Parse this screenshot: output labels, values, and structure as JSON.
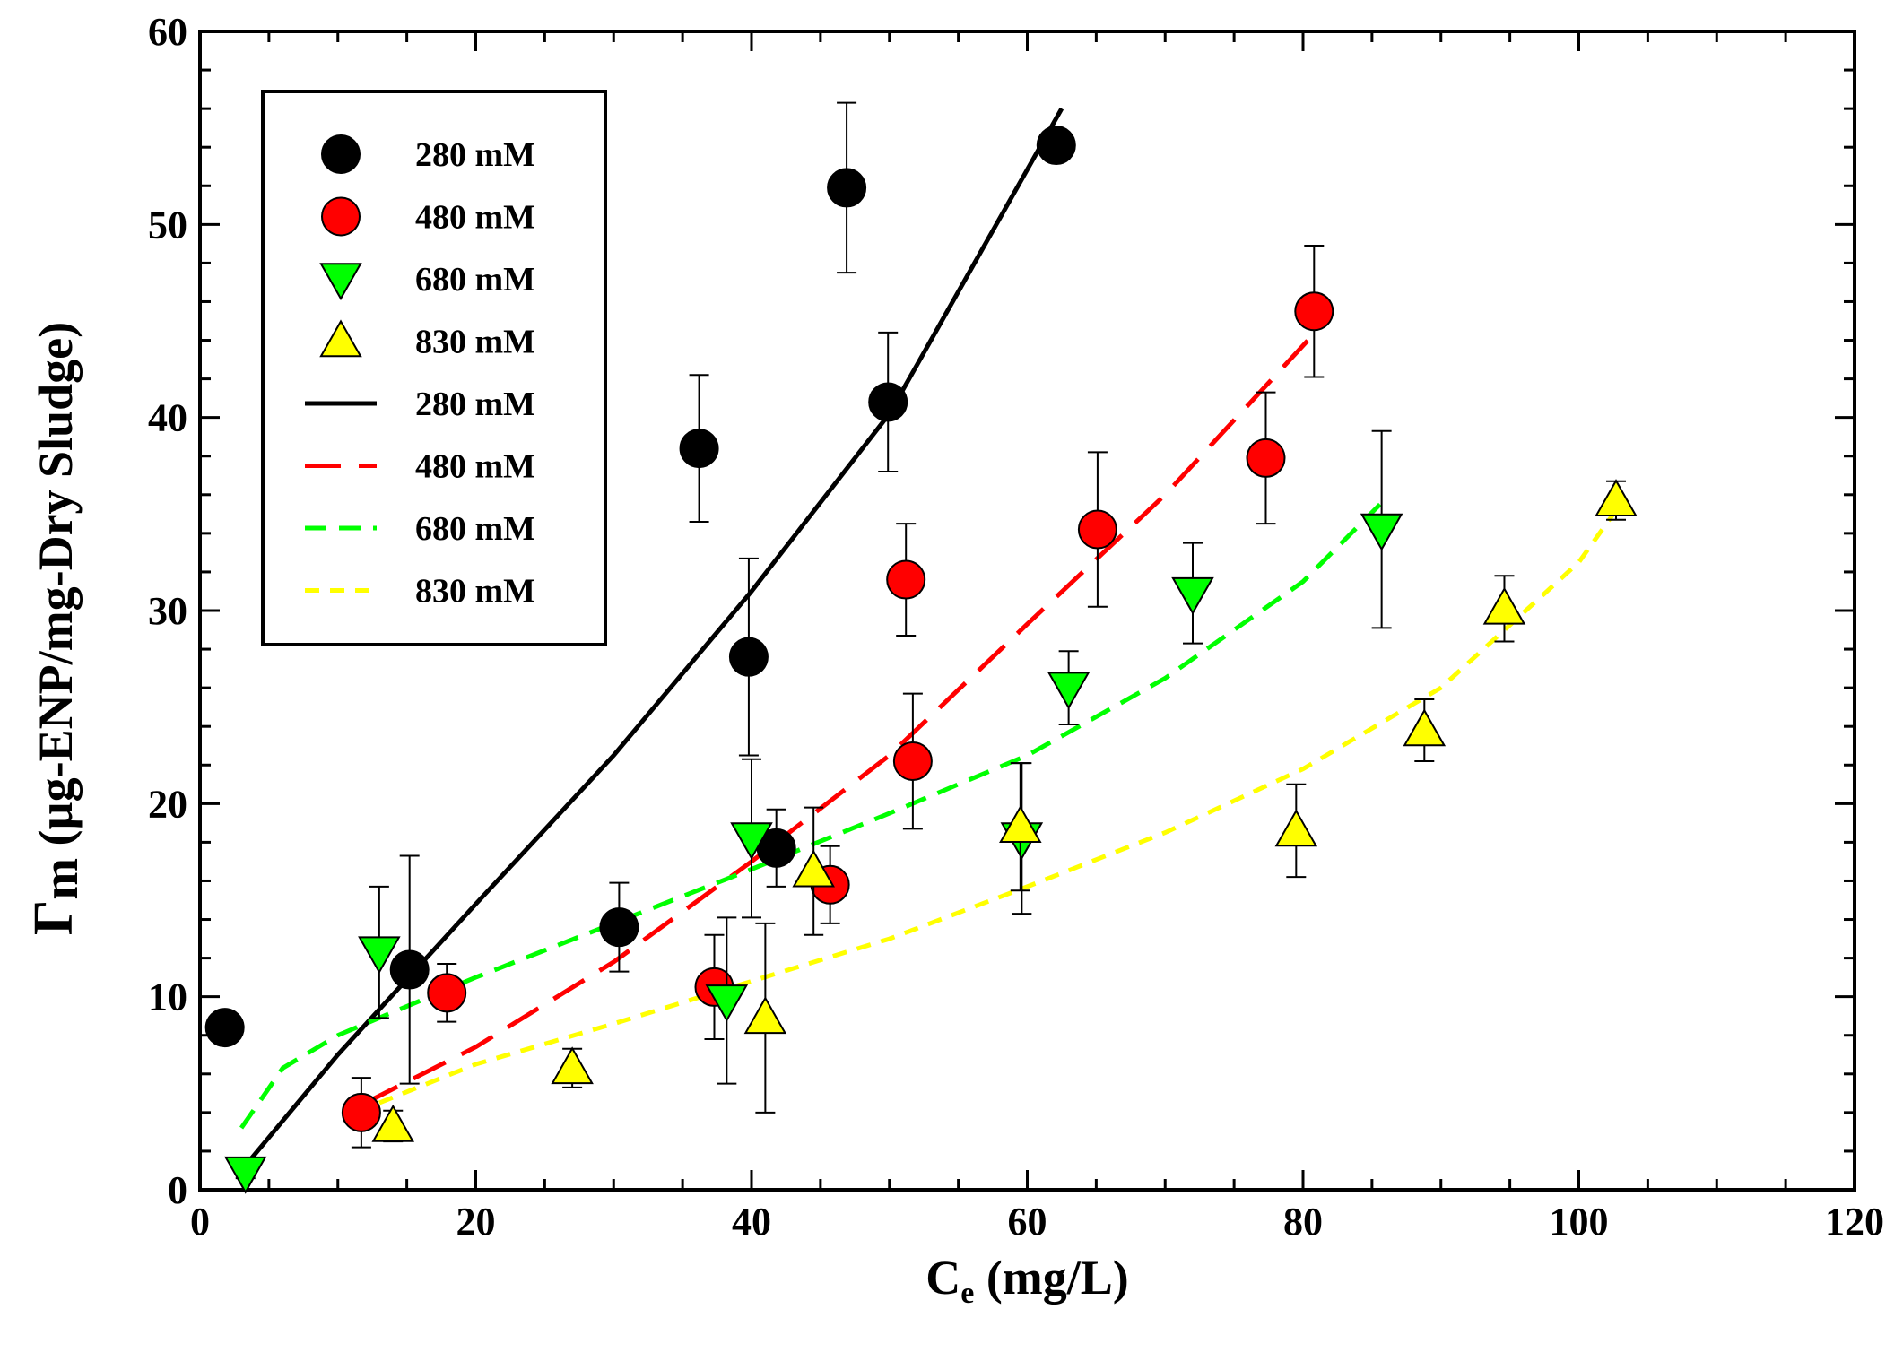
{
  "chart_data": {
    "type": "scatter",
    "xlabel": "C",
    "xlabel_sub": "e",
    "xlabel_unit": " (mg/L)",
    "ylabel_symbol": "Γ",
    "ylabel_sub": "m",
    "ylabel": " (µg-ENP/mg-Dry Sludge)",
    "xlim": [
      0,
      120
    ],
    "ylim": [
      0,
      60
    ],
    "xticks": [
      0,
      20,
      40,
      60,
      80,
      100,
      120
    ],
    "yticks": [
      0,
      10,
      20,
      30,
      40,
      50,
      60
    ],
    "x_minor_step": 5,
    "y_minor_step": 2,
    "grid": false,
    "legend_position": "top-left",
    "series": [
      {
        "name": "280 mM",
        "kind": "points",
        "marker": "circle",
        "color": "#000000",
        "points": [
          {
            "x": 1.8,
            "y": 8.4,
            "err": 0.7
          },
          {
            "x": 15.2,
            "y": 11.4,
            "err": 5.9
          },
          {
            "x": 30.4,
            "y": 13.6,
            "err": 2.3
          },
          {
            "x": 36.2,
            "y": 38.4,
            "err": 3.8
          },
          {
            "x": 39.8,
            "y": 27.6,
            "err": 5.1
          },
          {
            "x": 41.8,
            "y": 17.7,
            "err": 2.0
          },
          {
            "x": 46.9,
            "y": 51.9,
            "err": 4.4
          },
          {
            "x": 49.9,
            "y": 40.8,
            "err": 3.6
          },
          {
            "x": 62.1,
            "y": 54.1,
            "err": 0.2
          }
        ]
      },
      {
        "name": "480 mM",
        "kind": "points",
        "marker": "circle",
        "color": "#ff0000",
        "points": [
          {
            "x": 11.7,
            "y": 4.0,
            "err": 1.8
          },
          {
            "x": 17.9,
            "y": 10.2,
            "err": 1.5
          },
          {
            "x": 37.3,
            "y": 10.5,
            "err": 2.7
          },
          {
            "x": 45.7,
            "y": 15.8,
            "err": 2.0
          },
          {
            "x": 51.2,
            "y": 31.6,
            "err": 2.9
          },
          {
            "x": 51.7,
            "y": 22.2,
            "err": 3.5
          },
          {
            "x": 65.1,
            "y": 34.2,
            "err": 4.0
          },
          {
            "x": 77.3,
            "y": 37.9,
            "err": 3.4
          },
          {
            "x": 80.8,
            "y": 45.5,
            "err": 3.4
          }
        ]
      },
      {
        "name": "680 mM",
        "kind": "points",
        "marker": "triangle-down",
        "color": "#00ff00",
        "points": [
          {
            "x": 3.3,
            "y": 0.9,
            "err": 0.3
          },
          {
            "x": 13.0,
            "y": 12.3,
            "err": 3.4
          },
          {
            "x": 38.2,
            "y": 9.8,
            "err": 4.3
          },
          {
            "x": 40.0,
            "y": 18.2,
            "err": 4.1
          },
          {
            "x": 59.6,
            "y": 18.2,
            "err": 3.9
          },
          {
            "x": 63.0,
            "y": 26.0,
            "err": 1.9
          },
          {
            "x": 72.0,
            "y": 30.9,
            "err": 2.6
          },
          {
            "x": 85.7,
            "y": 34.2,
            "err": 5.1
          }
        ]
      },
      {
        "name": "830 mM",
        "kind": "points",
        "marker": "triangle-up",
        "color": "#ffff00",
        "points": [
          {
            "x": 14.0,
            "y": 3.3,
            "err": 0.8
          },
          {
            "x": 27.0,
            "y": 6.3,
            "err": 1.0
          },
          {
            "x": 41.0,
            "y": 8.9,
            "err": 4.9
          },
          {
            "x": 44.5,
            "y": 16.5,
            "err": 3.3
          },
          {
            "x": 59.5,
            "y": 18.8,
            "err": 3.3
          },
          {
            "x": 79.5,
            "y": 18.6,
            "err": 2.4
          },
          {
            "x": 88.8,
            "y": 23.8,
            "err": 1.6
          },
          {
            "x": 94.6,
            "y": 30.1,
            "err": 1.7
          },
          {
            "x": 102.7,
            "y": 35.7,
            "err": 1.0
          }
        ]
      },
      {
        "name": "280 mM",
        "kind": "line",
        "dash": "solid",
        "color": "#000000",
        "x": [
          3,
          10,
          20,
          30,
          40,
          50,
          62.5
        ],
        "y": [
          1.0,
          7.0,
          14.8,
          22.5,
          31.0,
          40.2,
          56.0
        ]
      },
      {
        "name": "480 mM",
        "kind": "line",
        "dash": "long",
        "color": "#ff0000",
        "x": [
          12,
          20,
          30,
          40,
          50,
          60,
          70,
          81
        ],
        "y": [
          4.5,
          7.4,
          11.8,
          17.0,
          22.5,
          29.3,
          36.0,
          44.5
        ]
      },
      {
        "name": "680 mM",
        "kind": "line",
        "dash": "medium",
        "color": "#00ff00",
        "x": [
          3,
          6,
          10,
          20,
          30,
          40,
          50,
          60,
          70,
          80,
          86
        ],
        "y": [
          3.2,
          6.3,
          8.0,
          11.0,
          13.8,
          16.6,
          19.5,
          22.5,
          26.5,
          31.5,
          35.8
        ]
      },
      {
        "name": "830 mM",
        "kind": "line",
        "dash": "short",
        "color": "#ffff00",
        "x": [
          13,
          20,
          30,
          40,
          50,
          60,
          70,
          80,
          90,
          100,
          103
        ],
        "y": [
          4.5,
          6.5,
          8.6,
          10.8,
          13.0,
          15.7,
          18.5,
          21.8,
          26.0,
          32.5,
          35.5
        ]
      }
    ]
  }
}
